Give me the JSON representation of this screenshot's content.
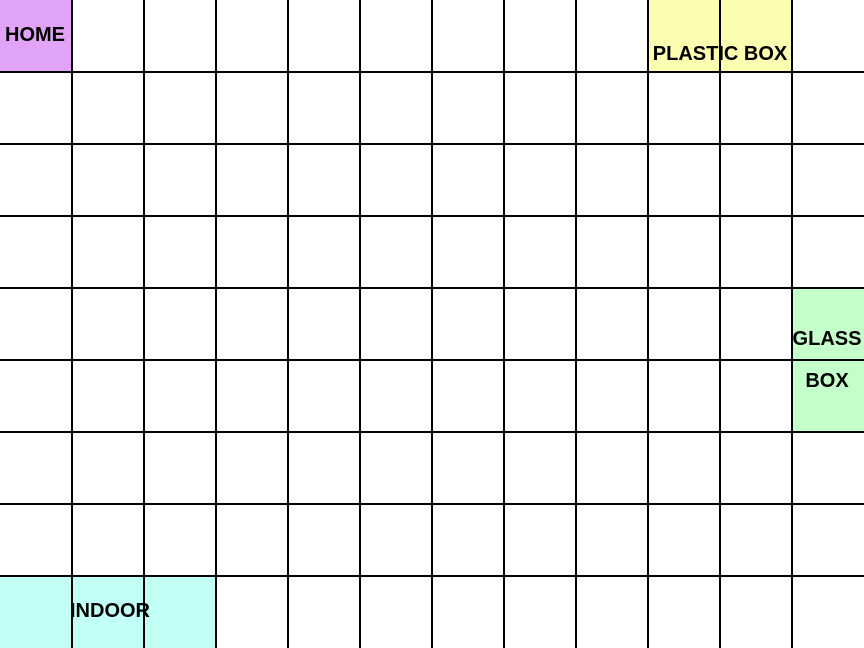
{
  "grid": {
    "columns": 12,
    "rows": 9,
    "line_color": "#000000",
    "background": "#ffffff"
  },
  "zones": {
    "home": {
      "label": "HOME",
      "color": "#e1a3f8"
    },
    "plastic": {
      "label": "PLASTIC BOX",
      "color": "#fcfdb0"
    },
    "glass": {
      "label_line1": "GLASS",
      "label_line2": "BOX",
      "color": "#c4fecb"
    },
    "indoor": {
      "label": "INDOOR",
      "color": "#c1fff7"
    }
  }
}
